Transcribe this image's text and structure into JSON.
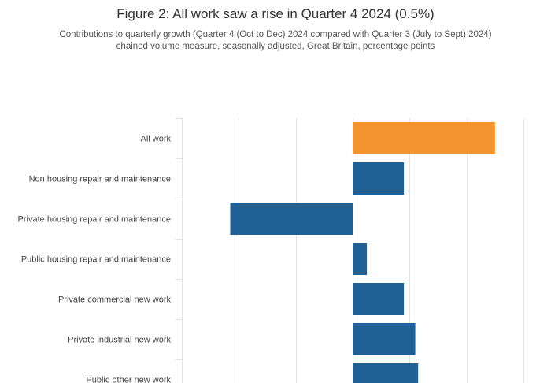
{
  "chart_data": {
    "type": "bar",
    "orientation": "horizontal",
    "title": "Figure 2: All work saw a rise in Quarter 4 2024 (0.5%)",
    "subtitle_lines": [
      "Contributions to quarterly growth (Quarter 4 (Oct to Dec) 2024 compared with Quarter 3 (July to Sept) 2024)",
      "chained volume measure, seasonally adjusted, Great Britain, percentage points"
    ],
    "categories": [
      "All work",
      "Non housing repair and maintenance",
      "Private housing repair and maintenance",
      "Public housing repair and maintenance",
      "Private commercial new work",
      "Private industrial new work",
      "Public other new work"
    ],
    "values": [
      0.5,
      0.18,
      -0.43,
      0.05,
      0.18,
      0.22,
      0.23
    ],
    "bar_colors": [
      "#f39431",
      "#206095",
      "#206095",
      "#206095",
      "#206095",
      "#206095",
      "#206095"
    ],
    "xlim": [
      -0.6,
      0.6
    ],
    "grid": true,
    "legend": "none"
  }
}
